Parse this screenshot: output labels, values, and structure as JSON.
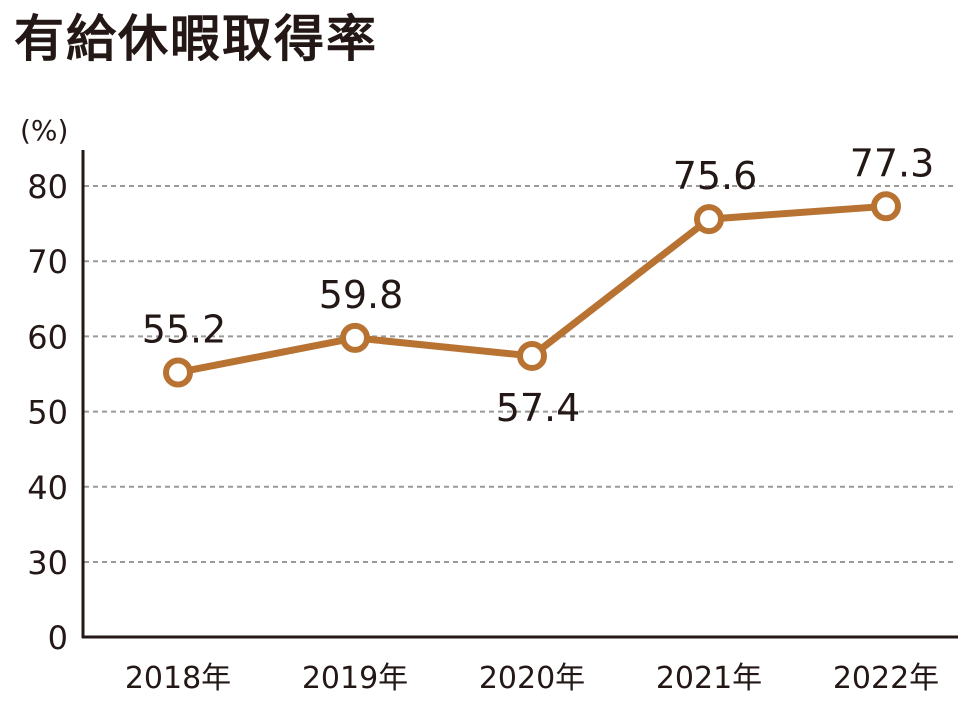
{
  "chart_data": {
    "type": "line",
    "title": "有給休暇取得率",
    "ylabel": "(%)",
    "xlabel": "",
    "categories": [
      "2018年",
      "2019年",
      "2020年",
      "2021年",
      "2022年"
    ],
    "series": [
      {
        "values": [
          55.2,
          59.8,
          57.4,
          75.6,
          77.3
        ],
        "labels": [
          "55.2",
          "59.8",
          "57.4",
          "75.6",
          "77.3"
        ]
      }
    ],
    "ylim": [
      0,
      85
    ],
    "yticks": [
      0,
      30,
      40,
      50,
      60,
      70,
      80
    ],
    "ytick_labels": [
      "0",
      "30",
      "40",
      "50",
      "60",
      "70",
      "80"
    ],
    "axis_break": "between 0 and 30",
    "grid": true,
    "grid_style": "dashed",
    "line_color": "#b87333",
    "marker": "hollow-circle"
  }
}
